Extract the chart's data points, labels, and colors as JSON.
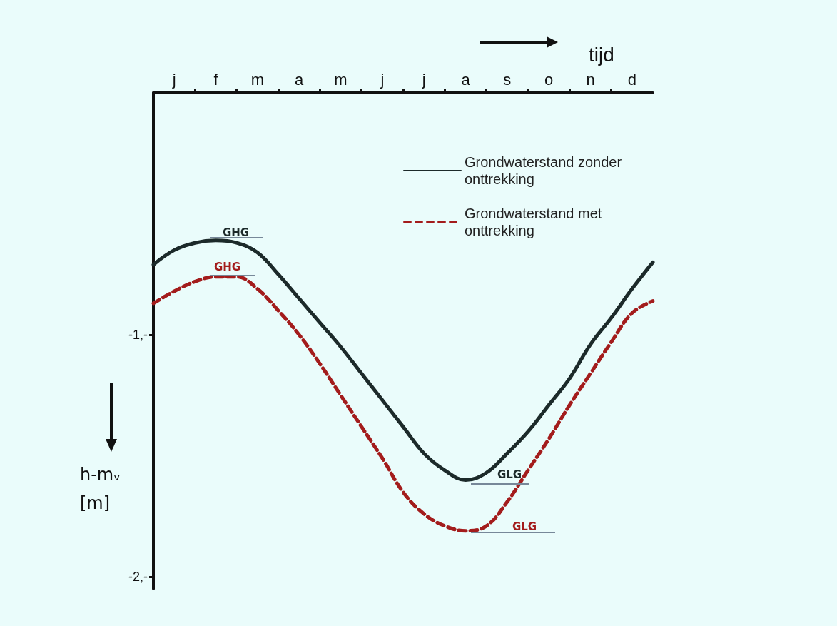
{
  "chart_data": {
    "type": "line",
    "xlabel": "tijd",
    "ylabel": "h-mᵥ [m]",
    "categories": [
      null,
      "j",
      null,
      "f",
      null,
      "m",
      null,
      "a",
      null,
      "m",
      null,
      "j",
      null,
      "j",
      null,
      "a",
      null,
      "s",
      null,
      "o",
      null,
      "n",
      null,
      "d",
      null
    ],
    "series": [
      {
        "name": "Grondwaterstand zonder onttrekking",
        "color": "#1c2a2a",
        "line_style": "solid",
        "values": [
          -0.71,
          -0.65,
          -0.62,
          -0.61,
          -0.62,
          -0.66,
          -0.75,
          -0.85,
          -0.95,
          -1.05,
          -1.16,
          -1.27,
          -1.38,
          -1.49,
          -1.56,
          -1.6,
          -1.57,
          -1.49,
          -1.4,
          -1.29,
          -1.18,
          -1.04,
          -0.93,
          -0.81,
          -0.7
        ]
      },
      {
        "name": "Grondwaterstand met onttrekking",
        "color": "#a31c1c",
        "line_style": "dashed",
        "values": [
          -0.87,
          -0.82,
          -0.78,
          -0.76,
          -0.76,
          -0.81,
          -0.9,
          -1.0,
          -1.12,
          -1.25,
          -1.38,
          -1.51,
          -1.65,
          -1.74,
          -1.79,
          -1.81,
          -1.79,
          -1.69,
          -1.56,
          -1.43,
          -1.29,
          -1.16,
          -1.03,
          -0.91,
          -0.86
        ]
      }
    ],
    "ylim": [
      -2.05,
      0
    ],
    "yticks": [
      {
        "value": -1,
        "label": "-1,-"
      },
      {
        "value": -2,
        "label": "-2,-"
      }
    ],
    "annotations": [
      "GHG",
      "GHG",
      "GLG",
      "GLG"
    ],
    "legend": "top right",
    "marker": "none"
  }
}
